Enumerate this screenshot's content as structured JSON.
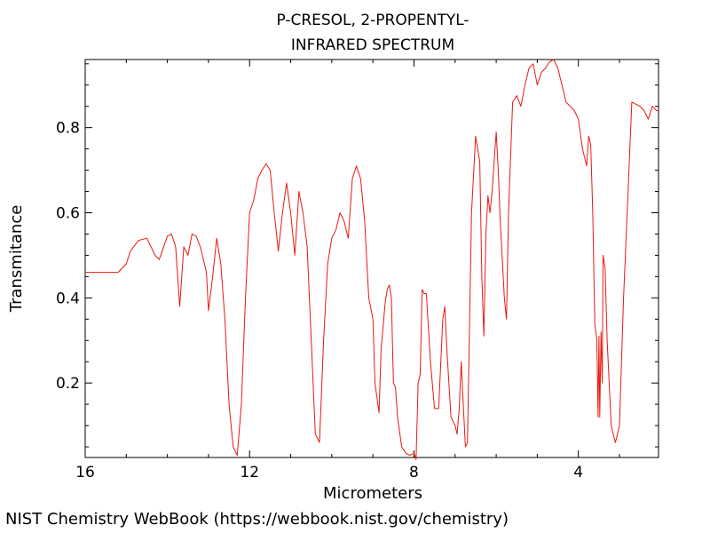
{
  "chart_data": {
    "type": "line",
    "title_line1": "P-CRESOL, 2-PROPENTYL-",
    "title_line2": "INFRARED SPECTRUM",
    "xlabel": "Micrometers",
    "ylabel": "Transmitance",
    "xlim": [
      16,
      2.05
    ],
    "ylim": [
      0.025,
      0.96
    ],
    "x_ticks": [
      {
        "value": 16,
        "label": "16"
      },
      {
        "value": 12,
        "label": "12"
      },
      {
        "value": 8,
        "label": "8"
      },
      {
        "value": 4,
        "label": "4"
      }
    ],
    "y_ticks": [
      {
        "value": 0.2,
        "label": "0.2"
      },
      {
        "value": 0.4,
        "label": "0.4"
      },
      {
        "value": 0.6,
        "label": "0.6"
      },
      {
        "value": 0.8,
        "label": "0.8"
      }
    ],
    "line_color": "#e8190f",
    "series": [
      {
        "x": [
          16.0,
          15.2,
          15.0,
          14.9,
          14.7,
          14.5,
          14.3,
          14.2,
          14.0,
          13.9,
          13.8,
          13.7,
          13.6,
          13.5,
          13.4,
          13.3,
          13.2,
          13.05,
          13.0,
          12.9,
          12.8,
          12.7,
          12.6,
          12.5,
          12.4,
          12.3,
          12.2,
          12.1,
          12.0,
          11.9,
          11.8,
          11.7,
          11.6,
          11.5,
          11.4,
          11.3,
          11.2,
          11.1,
          11.0,
          10.9,
          10.8,
          10.7,
          10.6,
          10.5,
          10.4,
          10.3,
          10.2,
          10.1,
          10.0,
          9.9,
          9.8,
          9.7,
          9.6,
          9.5,
          9.4,
          9.3,
          9.2,
          9.1,
          9.0,
          8.95,
          8.85,
          8.8,
          8.7,
          8.65,
          8.6,
          8.55,
          8.5,
          8.45,
          8.4,
          8.3,
          8.2,
          8.1,
          8.0,
          7.95,
          7.9,
          7.85,
          7.8,
          7.75,
          7.7,
          7.6,
          7.5,
          7.45,
          7.4,
          7.3,
          7.25,
          7.2,
          7.1,
          7.0,
          6.95,
          6.9,
          6.85,
          6.8,
          6.75,
          6.7,
          6.6,
          6.5,
          6.4,
          6.35,
          6.3,
          6.25,
          6.2,
          6.15,
          6.1,
          6.0,
          5.95,
          5.9,
          5.8,
          5.75,
          5.7,
          5.6,
          5.5,
          5.4,
          5.3,
          5.2,
          5.1,
          5.0,
          4.9,
          4.8,
          4.7,
          4.6,
          4.5,
          4.4,
          4.3,
          4.2,
          4.1,
          4.0,
          3.9,
          3.8,
          3.75,
          3.7,
          3.65,
          3.6,
          3.55,
          3.52,
          3.5,
          3.48,
          3.45,
          3.42,
          3.4,
          3.35,
          3.3,
          3.2,
          3.1,
          3.0,
          2.9,
          2.8,
          2.7,
          2.6,
          2.5,
          2.4,
          2.3,
          2.2,
          2.1,
          2.05
        ],
        "y": [
          0.46,
          0.46,
          0.48,
          0.51,
          0.535,
          0.54,
          0.5,
          0.49,
          0.545,
          0.55,
          0.52,
          0.38,
          0.52,
          0.5,
          0.55,
          0.545,
          0.52,
          0.46,
          0.37,
          0.45,
          0.54,
          0.48,
          0.35,
          0.15,
          0.05,
          0.03,
          0.15,
          0.4,
          0.6,
          0.63,
          0.68,
          0.7,
          0.715,
          0.7,
          0.6,
          0.51,
          0.6,
          0.67,
          0.6,
          0.5,
          0.65,
          0.6,
          0.52,
          0.3,
          0.08,
          0.06,
          0.3,
          0.48,
          0.54,
          0.56,
          0.6,
          0.58,
          0.54,
          0.68,
          0.71,
          0.68,
          0.58,
          0.4,
          0.35,
          0.2,
          0.13,
          0.28,
          0.39,
          0.42,
          0.43,
          0.4,
          0.2,
          0.19,
          0.12,
          0.05,
          0.035,
          0.03,
          0.035,
          0.02,
          0.2,
          0.22,
          0.42,
          0.41,
          0.41,
          0.25,
          0.14,
          0.14,
          0.14,
          0.35,
          0.38,
          0.28,
          0.12,
          0.1,
          0.08,
          0.14,
          0.25,
          0.15,
          0.05,
          0.06,
          0.6,
          0.78,
          0.72,
          0.45,
          0.31,
          0.55,
          0.64,
          0.6,
          0.65,
          0.79,
          0.7,
          0.58,
          0.4,
          0.35,
          0.6,
          0.86,
          0.875,
          0.85,
          0.9,
          0.94,
          0.95,
          0.9,
          0.93,
          0.94,
          0.955,
          0.96,
          0.94,
          0.9,
          0.86,
          0.85,
          0.84,
          0.82,
          0.75,
          0.71,
          0.78,
          0.76,
          0.6,
          0.34,
          0.3,
          0.12,
          0.31,
          0.12,
          0.32,
          0.2,
          0.5,
          0.47,
          0.3,
          0.1,
          0.06,
          0.1,
          0.4,
          0.63,
          0.86,
          0.855,
          0.85,
          0.84,
          0.82,
          0.85,
          0.84,
          0.84
        ]
      }
    ]
  },
  "footer": {
    "credit": "NIST Chemistry WebBook (https://webbook.nist.gov/chemistry)"
  }
}
